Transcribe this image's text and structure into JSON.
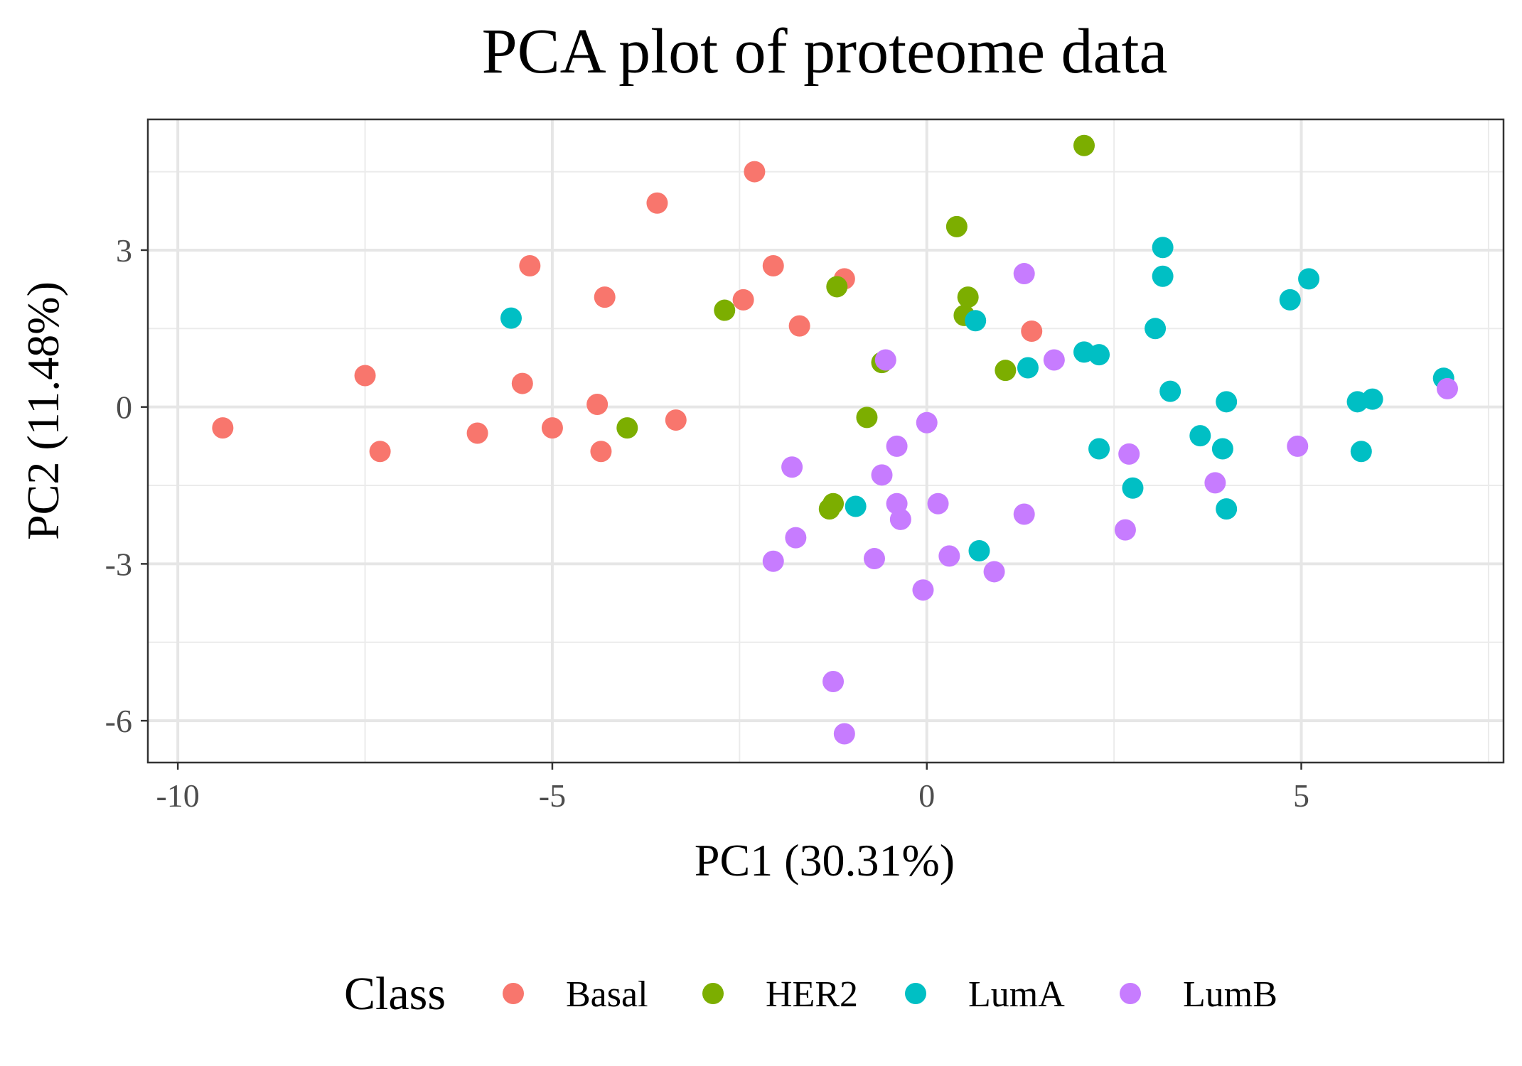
{
  "chart_data": {
    "type": "scatter",
    "title": "PCA plot of proteome data",
    "xlabel": "PC1 (30.31%)",
    "ylabel": "PC2 (11.48%)",
    "xlim": [
      -10.4,
      7.7
    ],
    "ylim": [
      -6.8,
      5.5
    ],
    "x_ticks": [
      -10,
      -5,
      0,
      5
    ],
    "x_tick_labels": [
      "-10",
      "-5",
      "0",
      "5"
    ],
    "y_ticks": [
      -6,
      -3,
      0,
      3
    ],
    "y_tick_labels": [
      "-6",
      "-3",
      "0",
      "3"
    ],
    "x_minor": [
      -7.5,
      -2.5,
      2.5,
      7.5
    ],
    "y_minor": [
      -4.5,
      -1.5,
      1.5,
      4.5
    ],
    "grid": true,
    "legend": {
      "title": "Class",
      "position": "bottom",
      "entries": [
        {
          "name": "Basal",
          "color": "#F8766D"
        },
        {
          "name": "HER2",
          "color": "#7CAE00"
        },
        {
          "name": "LumA",
          "color": "#00BFC4"
        },
        {
          "name": "LumB",
          "color": "#C77CFF"
        }
      ]
    },
    "series": [
      {
        "name": "Basal",
        "color": "#F8766D",
        "points": [
          [
            -9.4,
            -0.4
          ],
          [
            -7.5,
            0.6
          ],
          [
            -7.3,
            -0.85
          ],
          [
            -6.0,
            -0.5
          ],
          [
            -5.3,
            2.7
          ],
          [
            -5.4,
            0.45
          ],
          [
            -5.0,
            -0.4
          ],
          [
            -4.3,
            2.1
          ],
          [
            -4.4,
            0.05
          ],
          [
            -4.35,
            -0.85
          ],
          [
            -3.6,
            3.9
          ],
          [
            -3.35,
            -0.25
          ],
          [
            -2.3,
            4.5
          ],
          [
            -2.45,
            2.05
          ],
          [
            -2.05,
            2.7
          ],
          [
            -1.7,
            1.55
          ],
          [
            -1.1,
            2.45
          ],
          [
            1.4,
            1.45
          ]
        ]
      },
      {
        "name": "HER2",
        "color": "#7CAE00",
        "points": [
          [
            2.1,
            5.0
          ],
          [
            0.4,
            3.45
          ],
          [
            0.55,
            2.1
          ],
          [
            0.5,
            1.75
          ],
          [
            -1.2,
            2.3
          ],
          [
            -2.7,
            1.85
          ],
          [
            -0.6,
            0.85
          ],
          [
            1.05,
            0.7
          ],
          [
            -0.8,
            -0.2
          ],
          [
            -4.0,
            -0.4
          ],
          [
            -1.25,
            -1.85
          ],
          [
            -1.3,
            -1.95
          ]
        ]
      },
      {
        "name": "LumA",
        "color": "#00BFC4",
        "points": [
          [
            -5.55,
            1.7
          ],
          [
            0.65,
            1.65
          ],
          [
            1.35,
            0.75
          ],
          [
            2.1,
            1.05
          ],
          [
            2.3,
            1.0
          ],
          [
            3.05,
            1.5
          ],
          [
            3.15,
            3.05
          ],
          [
            3.15,
            2.5
          ],
          [
            3.25,
            0.3
          ],
          [
            4.85,
            2.05
          ],
          [
            5.1,
            2.45
          ],
          [
            2.3,
            -0.8
          ],
          [
            2.75,
            -1.55
          ],
          [
            3.65,
            -0.55
          ],
          [
            3.95,
            -0.8
          ],
          [
            4.0,
            0.1
          ],
          [
            4.0,
            -1.95
          ],
          [
            5.75,
            0.1
          ],
          [
            5.95,
            0.15
          ],
          [
            5.8,
            -0.85
          ],
          [
            6.9,
            0.55
          ],
          [
            -0.95,
            -1.9
          ],
          [
            0.7,
            -2.75
          ]
        ]
      },
      {
        "name": "LumB",
        "color": "#C77CFF",
        "points": [
          [
            1.3,
            2.55
          ],
          [
            1.7,
            0.9
          ],
          [
            -0.55,
            0.9
          ],
          [
            0.0,
            -0.3
          ],
          [
            -0.4,
            -0.75
          ],
          [
            -0.6,
            -1.3
          ],
          [
            -1.8,
            -1.15
          ],
          [
            -0.4,
            -1.85
          ],
          [
            -0.35,
            -2.15
          ],
          [
            0.15,
            -1.85
          ],
          [
            1.3,
            -2.05
          ],
          [
            2.7,
            -0.9
          ],
          [
            2.65,
            -2.35
          ],
          [
            3.85,
            -1.45
          ],
          [
            4.95,
            -0.75
          ],
          [
            6.95,
            0.35
          ],
          [
            -1.75,
            -2.5
          ],
          [
            -2.05,
            -2.95
          ],
          [
            -0.7,
            -2.9
          ],
          [
            0.3,
            -2.85
          ],
          [
            0.9,
            -3.15
          ],
          [
            -0.05,
            -3.5
          ],
          [
            -1.25,
            -5.25
          ],
          [
            -1.1,
            -6.25
          ]
        ]
      }
    ]
  }
}
